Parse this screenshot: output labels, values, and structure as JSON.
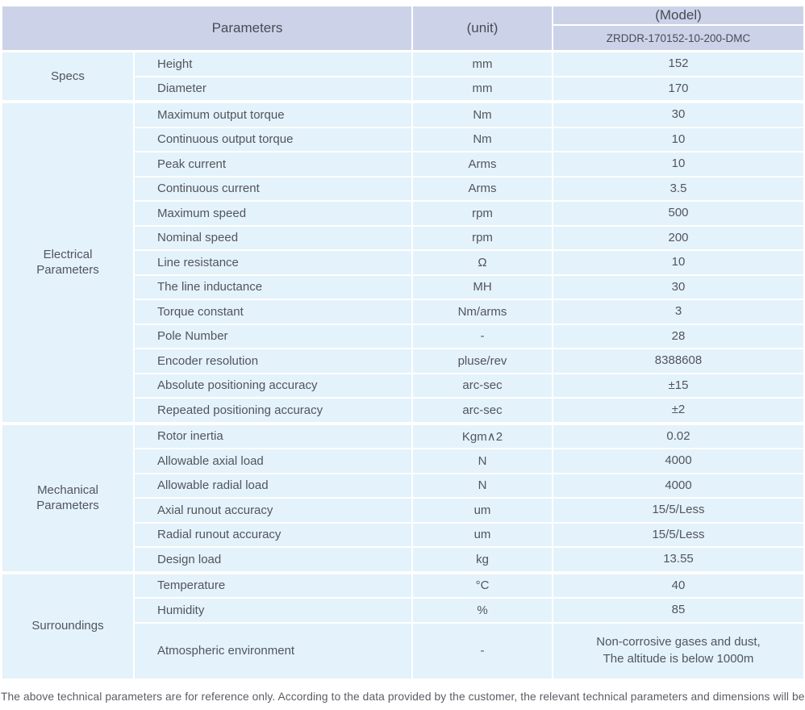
{
  "colors": {
    "header_bg": "#ccd3e8",
    "row_bg": "#e4f2fb"
  },
  "header": {
    "parameters": "Parameters",
    "unit": "(unit)",
    "model": "(Model)",
    "model_value": "ZRDDR-170152-10-200-DMC"
  },
  "groups": [
    {
      "label": "Specs",
      "rows": [
        {
          "param": "Height",
          "unit": "mm",
          "value": "152"
        },
        {
          "param": "Diameter",
          "unit": "mm",
          "value": "170"
        }
      ]
    },
    {
      "label": "Electrical\nParameters",
      "rows": [
        {
          "param": "Maximum output torque",
          "unit": "Nm",
          "value": "30"
        },
        {
          "param": "Continuous output torque",
          "unit": "Nm",
          "value": "10"
        },
        {
          "param": "Peak current",
          "unit": "Arms",
          "value": "10"
        },
        {
          "param": "Continuous current",
          "unit": "Arms",
          "value": "3.5"
        },
        {
          "param": "Maximum speed",
          "unit": "rpm",
          "value": "500"
        },
        {
          "param": "Nominal speed",
          "unit": "rpm",
          "value": "200"
        },
        {
          "param": "Line resistance",
          "unit": "Ω",
          "value": "10"
        },
        {
          "param": "The line inductance",
          "unit": "MH",
          "value": "30"
        },
        {
          "param": "Torque constant",
          "unit": "Nm/arms",
          "value": "3"
        },
        {
          "param": "Pole Number",
          "unit": "-",
          "value": "28"
        },
        {
          "param": "Encoder resolution",
          "unit": "pluse/rev",
          "value": "8388608"
        },
        {
          "param": "Absolute positioning accuracy",
          "unit": "arc-sec",
          "value": "±15"
        },
        {
          "param": "Repeated positioning accuracy",
          "unit": "arc-sec",
          "value": "±2"
        }
      ]
    },
    {
      "label": "Mechanical\nParameters",
      "rows": [
        {
          "param": "Rotor inertia",
          "unit": "Kgm∧2",
          "value": "0.02"
        },
        {
          "param": "Allowable axial load",
          "unit": "N",
          "value": "4000"
        },
        {
          "param": "Allowable radial load",
          "unit": "N",
          "value": "4000"
        },
        {
          "param": "Axial runout accuracy",
          "unit": "um",
          "value": "15/5/Less"
        },
        {
          "param": "Radial runout accuracy",
          "unit": "um",
          "value": "15/5/Less"
        },
        {
          "param": "Design load",
          "unit": "kg",
          "value": "13.55"
        }
      ]
    },
    {
      "label": "Surroundings",
      "rows": [
        {
          "param": "Temperature",
          "unit": "°C",
          "value": "40"
        },
        {
          "param": "Humidity",
          "unit": "%",
          "value": "85"
        },
        {
          "param": "Atmospheric environment",
          "unit": "-",
          "value": "Non-corrosive gases and dust,\nThe altitude is below 1000m"
        }
      ]
    }
  ],
  "footer": {
    "note": "The above technical parameters are for reference only. According to the data provided by the customer, the relevant technical parameters and dimensions will be issued."
  }
}
